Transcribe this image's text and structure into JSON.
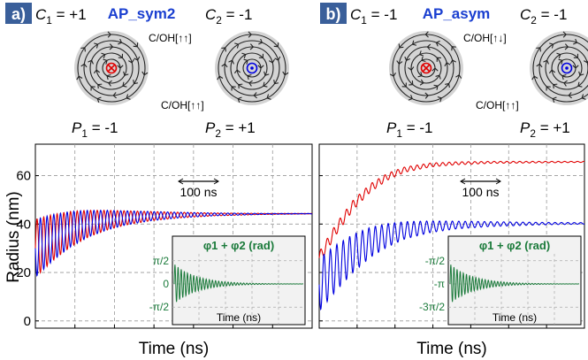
{
  "panels": [
    {
      "badge": "a)",
      "title": "AP_sym2",
      "C1": {
        "sym": "C",
        "sub": "1",
        "val": "= +1"
      },
      "C2": {
        "sym": "C",
        "sub": "2",
        "val": "= -1"
      },
      "P1": {
        "sym": "P",
        "sub": "1",
        "val": "= -1"
      },
      "P2": {
        "sym": "P",
        "sub": "2",
        "val": "= +1"
      },
      "coupling_top": "C/OH[↑↑]",
      "coupling_bottom": "C/OH[↑↑]",
      "core1": "into",
      "core2": "out",
      "scale_label": "100 ns"
    },
    {
      "badge": "b)",
      "title": "AP_asym",
      "C1": {
        "sym": "C",
        "sub": "1",
        "val": "= -1"
      },
      "C2": {
        "sym": "C",
        "sub": "2",
        "val": "= -1"
      },
      "P1": {
        "sym": "P",
        "sub": "1",
        "val": "= -1"
      },
      "P2": {
        "sym": "P",
        "sub": "2",
        "val": "= +1"
      },
      "coupling_top": "C/OH[↑↓]",
      "coupling_bottom": "C/OH[↑↑]",
      "core1": "into",
      "core2": "out",
      "scale_label": "100 ns"
    }
  ],
  "colors": {
    "red": "#e00000",
    "blue": "#0000e0",
    "green": "#1a7a3a",
    "badge": "#3a5f9a",
    "title": "#1a3fd0",
    "disk": "#d4d4d4"
  },
  "chart_data": [
    {
      "type": "line",
      "ylabel": "Radius (nm)",
      "xlabel": "Time (ns)",
      "ylim": [
        -3,
        73
      ],
      "yticks": [
        0,
        20,
        40,
        60
      ],
      "grid": true,
      "series": [
        {
          "color": "red",
          "x": [
            0,
            20,
            40,
            60,
            80,
            100,
            130,
            160,
            200,
            260,
            310
          ],
          "y": [
            30,
            34.5,
            38,
            40.2,
            41.6,
            42.5,
            43.3,
            43.7,
            44,
            44.2,
            44.3
          ],
          "osc_amp": [
            12,
            9.5,
            7.3,
            5.5,
            4.1,
            3.0,
            1.9,
            1.2,
            0.6,
            0.2,
            0.1
          ]
        },
        {
          "color": "blue",
          "x": [
            0,
            20,
            40,
            60,
            80,
            100,
            130,
            160,
            200,
            260,
            310
          ],
          "y": [
            30,
            34.5,
            38,
            40.2,
            41.6,
            42.5,
            43.3,
            43.7,
            44,
            44.2,
            44.3
          ],
          "osc_amp": [
            12,
            9.5,
            7.3,
            5.5,
            4.1,
            3.0,
            1.9,
            1.2,
            0.6,
            0.2,
            0.1
          ]
        }
      ],
      "inset": {
        "title": "φ1 + φ2 (rad)",
        "xlabel": "Time (ns)",
        "yticks": [
          "π/2",
          "0",
          "-π/2"
        ],
        "center": 0,
        "amp0": 1.35
      }
    },
    {
      "type": "line",
      "ylabel": "Radius (nm)",
      "xlabel": "Time (ns)",
      "ylim": [
        -3,
        73
      ],
      "yticks": [
        0,
        20,
        40,
        60
      ],
      "grid": true,
      "series": [
        {
          "color": "red",
          "x": [
            0,
            20,
            40,
            60,
            80,
            100,
            130,
            160,
            200,
            260,
            310
          ],
          "y": [
            26,
            38,
            48,
            55,
            59.6,
            62.5,
            64.4,
            65.1,
            65.5,
            65.6,
            65.7
          ],
          "osc_amp": [
            2.5,
            2.3,
            2.0,
            1.7,
            1.4,
            1.1,
            0.8,
            0.6,
            0.4,
            0.3,
            0.2
          ]
        },
        {
          "color": "blue",
          "x": [
            0,
            20,
            40,
            60,
            80,
            100,
            130,
            160,
            200,
            260,
            310
          ],
          "y": [
            15,
            22,
            28,
            32.5,
            35.4,
            37.4,
            38.9,
            39.6,
            40.0,
            40.2,
            40.3
          ],
          "osc_amp": [
            11,
            9.5,
            7.8,
            6.2,
            4.8,
            3.6,
            2.4,
            1.6,
            1.0,
            0.5,
            0.3
          ]
        }
      ],
      "inset": {
        "title": "φ1 + φ2 (rad)",
        "xlabel": "Time (ns)",
        "yticks": [
          "-π/2",
          "-π",
          "-3π/2"
        ],
        "center": -3.14159,
        "amp0": 1.35
      }
    }
  ]
}
